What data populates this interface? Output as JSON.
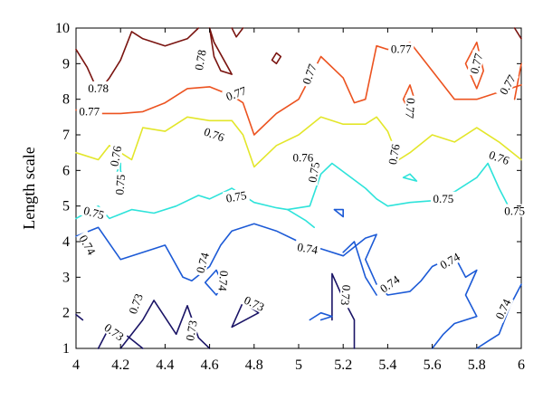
{
  "chart_data": {
    "type": "contour",
    "xlabel": "",
    "ylabel": "Length scale",
    "xlim": [
      4,
      6
    ],
    "ylim": [
      1,
      10
    ],
    "x_ticks": [
      "4",
      "4.2",
      "4.4",
      "4.6",
      "4.8",
      "5",
      "5.2",
      "5.4",
      "5.6",
      "5.8",
      "6"
    ],
    "y_ticks": [
      "1",
      "2",
      "3",
      "4",
      "5",
      "6",
      "7",
      "8",
      "9",
      "10"
    ],
    "grid": false,
    "levels": [
      {
        "level": 0.73,
        "color": "#1a1466",
        "lines": [
          [
            [
              4.0,
              1.95
            ],
            [
              4.03,
              1.8
            ]
          ],
          [
            [
              4.1,
              1.0
            ],
            [
              4.15,
              1.6
            ],
            [
              4.22,
              1.4
            ],
            [
              4.3,
              1.0
            ]
          ],
          [
            [
              4.2,
              1.0
            ],
            [
              4.3,
              1.8
            ],
            [
              4.35,
              2.35
            ],
            [
              4.45,
              1.4
            ],
            [
              4.5,
              2.2
            ],
            [
              4.55,
              1.3
            ],
            [
              4.6,
              1.0
            ]
          ],
          [
            [
              4.7,
              1.6
            ],
            [
              4.75,
              2.3
            ],
            [
              4.82,
              2.0
            ],
            [
              4.7,
              1.6
            ]
          ],
          [
            [
              5.15,
              1.8
            ],
            [
              5.15,
              3.1
            ],
            [
              5.2,
              2.4
            ],
            [
              5.25,
              1.8
            ],
            [
              5.25,
              1.0
            ]
          ]
        ],
        "labels": [
          {
            "x": 4.17,
            "y": 1.45,
            "text": "0.73",
            "rot": 35
          },
          {
            "x": 4.27,
            "y": 2.25,
            "text": "0.73",
            "rot": -70
          },
          {
            "x": 4.52,
            "y": 1.5,
            "text": "0.73",
            "rot": -80
          },
          {
            "x": 4.8,
            "y": 2.25,
            "text": "0.73",
            "rot": 25
          },
          {
            "x": 5.21,
            "y": 2.5,
            "text": "0.73",
            "rot": 95
          }
        ]
      },
      {
        "level": 0.74,
        "color": "#1c5ad6",
        "lines": [
          [
            [
              4.0,
              4.15
            ],
            [
              4.1,
              4.4
            ],
            [
              4.2,
              3.5
            ],
            [
              4.35,
              3.8
            ],
            [
              4.4,
              3.9
            ],
            [
              4.48,
              3.0
            ],
            [
              4.52,
              2.9
            ],
            [
              4.6,
              3.3
            ],
            [
              4.65,
              3.9
            ],
            [
              4.7,
              4.3
            ],
            [
              4.8,
              4.5
            ],
            [
              4.9,
              4.3
            ],
            [
              5.0,
              4.0
            ],
            [
              5.1,
              3.8
            ],
            [
              5.2,
              3.6
            ],
            [
              5.3,
              4.1
            ],
            [
              5.35,
              4.2
            ],
            [
              5.3,
              3.5
            ],
            [
              5.35,
              2.8
            ],
            [
              5.4,
              2.5
            ],
            [
              5.5,
              2.6
            ],
            [
              5.55,
              2.9
            ],
            [
              5.6,
              3.3
            ],
            [
              5.7,
              3.6
            ],
            [
              5.75,
              3.0
            ],
            [
              5.8,
              3.2
            ],
            [
              5.75,
              2.5
            ],
            [
              5.8,
              1.9
            ],
            [
              5.7,
              1.7
            ],
            [
              5.65,
              1.4
            ],
            [
              5.6,
              1.0
            ]
          ],
          [
            [
              4.58,
              2.85
            ],
            [
              4.63,
              3.2
            ],
            [
              4.66,
              2.8
            ],
            [
              4.63,
              2.5
            ],
            [
              4.58,
              2.85
            ]
          ],
          [
            [
              5.2,
              3.7
            ],
            [
              5.25,
              4.0
            ],
            [
              5.3,
              3.0
            ],
            [
              5.35,
              2.5
            ]
          ],
          [
            [
              5.1,
              1.8
            ],
            [
              5.15,
              1.9
            ],
            [
              5.1,
              2.0
            ],
            [
              5.05,
              1.8
            ]
          ],
          [
            [
              5.16,
              4.9
            ],
            [
              5.2,
              4.7
            ],
            [
              5.2,
              4.9
            ],
            [
              5.16,
              4.9
            ]
          ],
          [
            [
              5.8,
              1.0
            ],
            [
              5.85,
              1.2
            ],
            [
              5.9,
              1.4
            ],
            [
              5.95,
              2.2
            ],
            [
              6.0,
              2.8
            ]
          ]
        ],
        "labels": [
          {
            "x": 4.05,
            "y": 3.9,
            "text": "0.74",
            "rot": 60
          },
          {
            "x": 4.57,
            "y": 3.4,
            "text": "0.74",
            "rot": -75
          },
          {
            "x": 4.66,
            "y": 2.9,
            "text": "0.74",
            "rot": 95
          },
          {
            "x": 5.04,
            "y": 3.8,
            "text": "0.74",
            "rot": 10
          },
          {
            "x": 5.41,
            "y": 2.8,
            "text": "0.74",
            "rot": -35
          },
          {
            "x": 5.68,
            "y": 3.45,
            "text": "0.74",
            "rot": -30
          },
          {
            "x": 5.92,
            "y": 2.1,
            "text": "0.74",
            "rot": -65
          }
        ]
      },
      {
        "level": 0.75,
        "color": "#2ee3da",
        "lines": [
          [
            [
              4.0,
              4.65
            ],
            [
              4.1,
              5.0
            ],
            [
              4.15,
              4.65
            ],
            [
              4.25,
              4.9
            ],
            [
              4.35,
              4.8
            ],
            [
              4.45,
              5.0
            ],
            [
              4.55,
              5.3
            ],
            [
              4.6,
              5.2
            ],
            [
              4.7,
              5.5
            ],
            [
              4.8,
              5.1
            ],
            [
              4.9,
              4.95
            ],
            [
              4.95,
              4.9
            ],
            [
              5.05,
              5.0
            ],
            [
              5.1,
              5.9
            ],
            [
              5.15,
              6.2
            ],
            [
              5.3,
              5.5
            ],
            [
              5.35,
              5.2
            ],
            [
              5.4,
              5.0
            ],
            [
              5.5,
              5.1
            ],
            [
              5.6,
              5.15
            ],
            [
              5.7,
              5.4
            ],
            [
              5.8,
              5.8
            ],
            [
              5.85,
              6.2
            ],
            [
              5.9,
              5.5
            ],
            [
              5.95,
              4.9
            ],
            [
              6.0,
              4.9
            ]
          ],
          [
            [
              4.2,
              6.2
            ],
            [
              4.18,
              5.9
            ],
            [
              4.22,
              5.5
            ],
            [
              4.2,
              6.0
            ],
            [
              4.2,
              6.2
            ]
          ],
          [
            [
              5.5,
              5.9
            ],
            [
              5.53,
              5.7
            ],
            [
              5.47,
              5.8
            ],
            [
              5.5,
              5.9
            ]
          ],
          [
            [
              4.95,
              4.9
            ],
            [
              5.03,
              4.6
            ],
            [
              5.07,
              4.4
            ]
          ]
        ],
        "labels": [
          {
            "x": 4.08,
            "y": 4.8,
            "text": "0.75",
            "rot": 15
          },
          {
            "x": 4.2,
            "y": 5.6,
            "text": "0.75",
            "rot": -85
          },
          {
            "x": 4.72,
            "y": 5.25,
            "text": "0.75",
            "rot": -10
          },
          {
            "x": 5.07,
            "y": 5.95,
            "text": "0.75",
            "rot": -80
          },
          {
            "x": 5.65,
            "y": 5.2,
            "text": "0.75",
            "rot": 0
          },
          {
            "x": 5.97,
            "y": 4.85,
            "text": "0.75",
            "rot": 0
          }
        ]
      },
      {
        "level": 0.76,
        "color": "#e3e62a",
        "lines": [
          [
            [
              4.0,
              6.5
            ],
            [
              4.1,
              6.3
            ],
            [
              4.15,
              6.7
            ],
            [
              4.2,
              6.5
            ],
            [
              4.25,
              6.3
            ],
            [
              4.3,
              7.2
            ],
            [
              4.4,
              7.1
            ],
            [
              4.5,
              7.5
            ],
            [
              4.6,
              7.4
            ],
            [
              4.7,
              7.4
            ],
            [
              4.75,
              7.0
            ],
            [
              4.8,
              6.1
            ],
            [
              4.9,
              6.7
            ],
            [
              5.0,
              7.0
            ],
            [
              5.1,
              7.5
            ],
            [
              5.2,
              7.3
            ],
            [
              5.3,
              7.3
            ],
            [
              5.35,
              7.5
            ],
            [
              5.4,
              7.1
            ],
            [
              5.45,
              6.3
            ],
            [
              5.5,
              6.5
            ],
            [
              5.6,
              7.0
            ],
            [
              5.7,
              6.8
            ],
            [
              5.8,
              7.2
            ],
            [
              5.9,
              6.8
            ],
            [
              6.0,
              6.3
            ]
          ]
        ],
        "labels": [
          {
            "x": 4.18,
            "y": 6.4,
            "text": "0.76",
            "rot": -80
          },
          {
            "x": 4.62,
            "y": 7.0,
            "text": "0.76",
            "rot": 20
          },
          {
            "x": 5.02,
            "y": 6.35,
            "text": "0.76",
            "rot": 0
          },
          {
            "x": 5.43,
            "y": 6.45,
            "text": "0.76",
            "rot": -80
          },
          {
            "x": 5.9,
            "y": 6.35,
            "text": "0.76",
            "rot": 20
          }
        ]
      },
      {
        "level": 0.77,
        "color": "#ec5320",
        "lines": [
          [
            [
              4.0,
              7.7
            ],
            [
              4.1,
              7.6
            ],
            [
              4.2,
              7.6
            ],
            [
              4.3,
              7.65
            ],
            [
              4.4,
              7.9
            ],
            [
              4.5,
              8.3
            ],
            [
              4.6,
              8.35
            ],
            [
              4.7,
              8.1
            ],
            [
              4.75,
              7.9
            ],
            [
              4.8,
              7.0
            ],
            [
              4.9,
              7.6
            ],
            [
              5.0,
              8.0
            ],
            [
              5.1,
              9.2
            ],
            [
              5.2,
              8.6
            ],
            [
              5.25,
              7.9
            ],
            [
              5.3,
              8.0
            ],
            [
              5.35,
              9.5
            ],
            [
              5.4,
              9.4
            ],
            [
              5.5,
              9.6
            ],
            [
              5.6,
              8.8
            ],
            [
              5.7,
              8.0
            ],
            [
              5.8,
              8.0
            ],
            [
              5.9,
              8.2
            ],
            [
              6.0,
              8.4
            ]
          ],
          [
            [
              5.5,
              8.4
            ],
            [
              5.53,
              7.8
            ],
            [
              5.5,
              7.6
            ],
            [
              5.47,
              8.0
            ],
            [
              5.5,
              8.4
            ]
          ],
          [
            [
              5.75,
              9.0
            ],
            [
              5.8,
              9.6
            ],
            [
              5.83,
              8.8
            ],
            [
              5.8,
              8.3
            ],
            [
              5.75,
              9.0
            ]
          ],
          [
            [
              5.97,
              8.0
            ],
            [
              6.0,
              9.0
            ]
          ]
        ],
        "labels": [
          {
            "x": 4.06,
            "y": 7.65,
            "text": "0.77",
            "rot": 0
          },
          {
            "x": 4.72,
            "y": 8.15,
            "text": "0.77",
            "rot": -20
          },
          {
            "x": 5.05,
            "y": 8.7,
            "text": "0.77",
            "rot": -70
          },
          {
            "x": 5.46,
            "y": 9.4,
            "text": "0.77",
            "rot": 0
          },
          {
            "x": 5.5,
            "y": 7.75,
            "text": "0.77",
            "rot": 95
          },
          {
            "x": 5.8,
            "y": 9.0,
            "text": "0.77",
            "rot": -75
          },
          {
            "x": 5.94,
            "y": 8.4,
            "text": "0.77",
            "rot": -60
          }
        ]
      },
      {
        "level": 0.78,
        "color": "#7a1410",
        "lines": [
          [
            [
              4.0,
              9.4
            ],
            [
              4.05,
              8.9
            ],
            [
              4.1,
              8.2
            ],
            [
              4.15,
              8.6
            ],
            [
              4.2,
              9.1
            ],
            [
              4.25,
              9.9
            ],
            [
              4.3,
              9.7
            ],
            [
              4.4,
              9.5
            ],
            [
              4.5,
              9.7
            ],
            [
              4.55,
              10.0
            ]
          ],
          [
            [
              4.6,
              10.0
            ],
            [
              4.62,
              9.2
            ],
            [
              4.65,
              8.8
            ],
            [
              4.7,
              8.7
            ],
            [
              4.62,
              9.6
            ],
            [
              4.6,
              10.0
            ]
          ],
          [
            [
              4.7,
              10.0
            ],
            [
              4.72,
              9.75
            ],
            [
              4.75,
              10.0
            ]
          ],
          [
            [
              4.9,
              9.0
            ],
            [
              4.92,
              9.2
            ],
            [
              4.9,
              9.3
            ],
            [
              4.88,
              9.1
            ],
            [
              4.9,
              9.0
            ]
          ],
          [
            [
              5.97,
              10.0
            ],
            [
              6.0,
              9.7
            ]
          ]
        ],
        "labels": [
          {
            "x": 4.1,
            "y": 8.3,
            "text": "0.78",
            "rot": 0
          },
          {
            "x": 4.56,
            "y": 9.1,
            "text": "0.78",
            "rot": -80
          }
        ]
      }
    ]
  }
}
